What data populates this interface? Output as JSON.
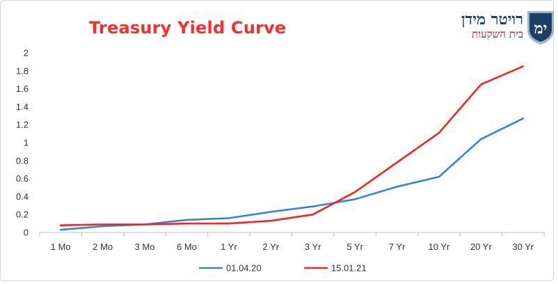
{
  "chart_data": {
    "type": "line",
    "title": "Treasury Yield Curve",
    "xlabel": "",
    "ylabel": "",
    "categories": [
      "1 Mo",
      "2 Mo",
      "3 Mo",
      "6 Mo",
      "1 Yr",
      "2 Yr",
      "3 Yr",
      "5 Yr",
      "7 Yr",
      "10 Yr",
      "20 Yr",
      "30 Yr"
    ],
    "ylim": [
      0,
      2
    ],
    "yticks": [
      "0",
      "0.2",
      "0.4",
      "0.6",
      "0.8",
      "1",
      "1.2",
      "1.4",
      "1.6",
      "1.8",
      "2"
    ],
    "grid": false,
    "legend_position": "bottom",
    "series": [
      {
        "name": "01.04.20",
        "color": "#2e86de",
        "values": [
          0.03,
          0.07,
          0.09,
          0.14,
          0.16,
          0.23,
          0.29,
          0.37,
          0.51,
          0.62,
          1.04,
          1.27
        ]
      },
      {
        "name": "15.01.21",
        "color": "#ff2020",
        "values": [
          0.08,
          0.09,
          0.09,
          0.1,
          0.1,
          0.13,
          0.2,
          0.45,
          0.78,
          1.11,
          1.65,
          1.85
        ]
      }
    ]
  },
  "logo": {
    "monogram": "ימ",
    "name": "רויטר מידן",
    "subtitle": "בית השקעות",
    "color_primary": "#1d3e66",
    "color_accent": "#c8102e"
  }
}
